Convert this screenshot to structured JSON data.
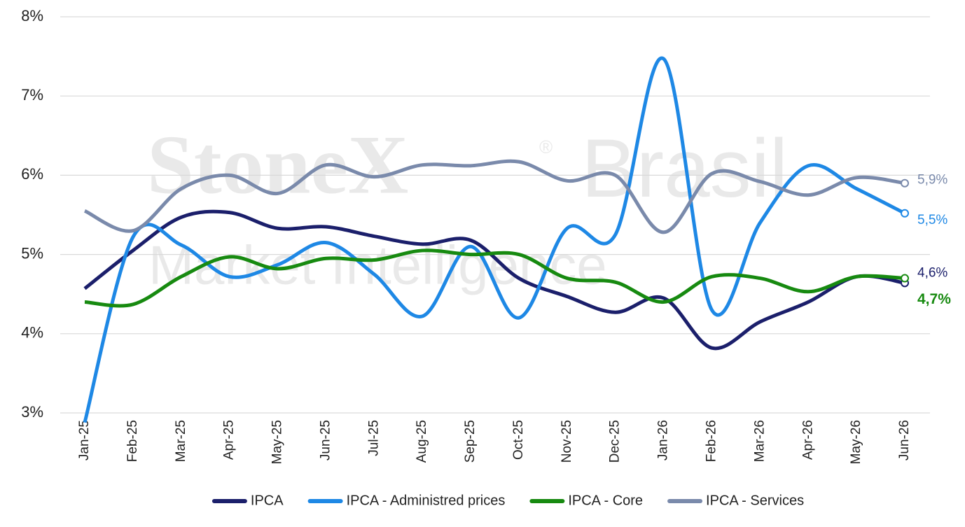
{
  "chart_data": {
    "type": "line",
    "watermark": {
      "brand": "StoneX",
      "mark": "®",
      "region": "Brasil",
      "unit": "Market Intelligence"
    },
    "categories": [
      "Jan-25",
      "Feb-25",
      "Mar-25",
      "Apr-25",
      "May-25",
      "Jun-25",
      "Jul-25",
      "Aug-25",
      "Sep-25",
      "Oct-25",
      "Nov-25",
      "Dec-25",
      "Jan-26",
      "Feb-26",
      "Mar-26",
      "Apr-26",
      "May-26",
      "Jun-26"
    ],
    "series": [
      {
        "name": "IPCA",
        "color": "#1b1f6b",
        "values": [
          4.57,
          5.05,
          5.47,
          5.53,
          5.33,
          5.35,
          5.23,
          5.13,
          5.18,
          4.7,
          4.47,
          4.27,
          4.45,
          3.82,
          4.15,
          4.4,
          4.72,
          4.64
        ],
        "value_labels": [
          null,
          null,
          null,
          null,
          null,
          null,
          null,
          null,
          null,
          null,
          null,
          null,
          null,
          null,
          null,
          null,
          null,
          "4,6%"
        ]
      },
      {
        "name": "IPCA - Administred prices",
        "color": "#1e88e5",
        "values": [
          2.88,
          5.22,
          5.12,
          4.72,
          4.87,
          5.15,
          4.75,
          4.22,
          5.1,
          4.2,
          5.33,
          5.25,
          7.47,
          4.3,
          5.4,
          6.12,
          5.83,
          5.52
        ],
        "value_labels": [
          null,
          null,
          null,
          null,
          null,
          null,
          null,
          null,
          null,
          null,
          null,
          null,
          null,
          null,
          null,
          null,
          null,
          "5,5%"
        ]
      },
      {
        "name": "IPCA - Core",
        "color": "#178a10",
        "values": [
          4.4,
          4.37,
          4.72,
          4.97,
          4.82,
          4.95,
          4.93,
          5.05,
          5.0,
          5.0,
          4.7,
          4.65,
          4.4,
          4.72,
          4.7,
          4.53,
          4.72,
          4.7
        ],
        "value_labels": [
          null,
          null,
          null,
          null,
          null,
          null,
          null,
          null,
          null,
          null,
          null,
          null,
          null,
          null,
          null,
          null,
          null,
          "4,7%"
        ]
      },
      {
        "name": "IPCA - Services",
        "color": "#7a8aab",
        "values": [
          5.55,
          5.3,
          5.83,
          6.0,
          5.77,
          6.13,
          5.98,
          6.13,
          6.12,
          6.17,
          5.93,
          6.0,
          5.28,
          6.02,
          5.92,
          5.75,
          5.97,
          5.9
        ],
        "value_labels": [
          null,
          null,
          null,
          null,
          null,
          null,
          null,
          null,
          null,
          null,
          null,
          null,
          null,
          null,
          null,
          null,
          null,
          "5,9%"
        ]
      }
    ],
    "ylim": [
      3,
      8
    ],
    "yticks": [
      {
        "value": 3,
        "label": "3%"
      },
      {
        "value": 4,
        "label": "4%"
      },
      {
        "value": 5,
        "label": "5%"
      },
      {
        "value": 6,
        "label": "6%"
      },
      {
        "value": 7,
        "label": "7%"
      },
      {
        "value": 8,
        "label": "8%"
      }
    ],
    "grid": true,
    "legend": "bottom"
  }
}
